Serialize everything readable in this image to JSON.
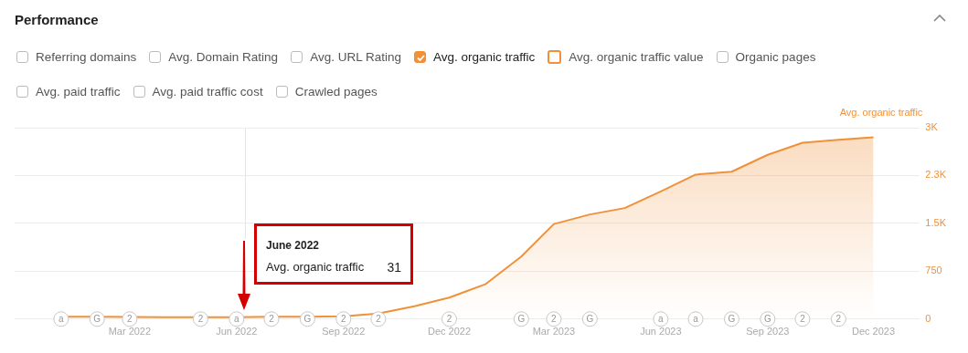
{
  "chart_data": {
    "type": "area",
    "title": "Performance",
    "ylabel": "Avg. organic traffic",
    "x": [
      "2022-01",
      "2022-02",
      "2022-03",
      "2022-04",
      "2022-05",
      "2022-06",
      "2022-07",
      "2022-08",
      "2022-09",
      "2022-10",
      "2022-11",
      "2022-12",
      "2023-01",
      "2023-02",
      "2023-03",
      "2023-04",
      "2023-05",
      "2023-06",
      "2023-07",
      "2023-08",
      "2023-09",
      "2023-10",
      "2023-11",
      "2023-12"
    ],
    "series": [
      {
        "color": "#f0913a",
        "values": [
          35,
          35,
          33,
          30,
          28,
          31,
          35,
          38,
          42,
          88,
          200,
          336,
          545,
          980,
          1490,
          1640,
          1740,
          2000,
          2265,
          2310,
          2575,
          2765,
          2810,
          2850
        ]
      },
      {
        "type": "scatter",
        "marker": "circle",
        "color": "#c8c8c8",
        "x": [
          "2022-01",
          "2022-02",
          "2022-03",
          "2022-05",
          "2022-06",
          "2022-07",
          "2022-08",
          "2022-09",
          "2022-10",
          "2022-12",
          "2023-02",
          "2023-03",
          "2023-04",
          "2023-06",
          "2023-07",
          "2023-08",
          "2023-09",
          "2023-10",
          "2023-11"
        ],
        "values": [
          0,
          0,
          0,
          0,
          0,
          0,
          0,
          0,
          0,
          0,
          0,
          0,
          0,
          0,
          0,
          0,
          0,
          0,
          0
        ]
      }
    ],
    "xlim": [
      "2021-11-22",
      "2024-01-10"
    ],
    "xticks": [
      {
        "value": "2022-03",
        "label": "Mar 2022"
      },
      {
        "value": "2022-06",
        "label": "Jun 2022"
      },
      {
        "value": "2022-09",
        "label": "Sep 2022"
      },
      {
        "value": "2022-12",
        "label": "Dec 2022"
      },
      {
        "value": "2023-03",
        "label": "Mar 2023"
      },
      {
        "value": "2023-06",
        "label": "Jun 2023"
      },
      {
        "value": "2023-09",
        "label": "Sep 2023"
      },
      {
        "value": "2023-12",
        "label": "Dec 2023"
      }
    ],
    "ylim": [
      0,
      3000
    ],
    "yticks": [
      0,
      750,
      {
        "value": 1500,
        "label": "1.5K"
      },
      {
        "value": 2250,
        "label": "2.3K"
      },
      {
        "value": 3000,
        "label": "3K"
      }
    ],
    "grid": "y",
    "legend": false,
    "marker": "none",
    "line_style": "solid",
    "annotations": [
      "Referring domains",
      "Avg. Domain Rating",
      "Avg. URL Rating",
      "Avg. organic traffic",
      "Avg. organic traffic value",
      "Organic pages",
      "Avg. paid traffic",
      "Avg. paid traffic cost",
      "Crawled pages",
      "June 2022",
      "Avg. organic traffic",
      "31",
      {
        "text": "a",
        "x": "2022-01",
        "y": 0
      },
      {
        "text": "G",
        "x": "2022-02",
        "y": 0
      },
      {
        "text": "2",
        "x": "2022-03",
        "y": 0
      },
      {
        "text": "2",
        "x": "2022-05",
        "y": 0
      },
      {
        "text": "a",
        "x": "2022-06",
        "y": 0
      },
      {
        "text": "2",
        "x": "2022-07",
        "y": 0
      },
      {
        "text": "G",
        "x": "2022-08",
        "y": 0
      },
      {
        "text": "2",
        "x": "2022-09",
        "y": 0
      },
      {
        "text": "2",
        "x": "2022-10",
        "y": 0
      },
      {
        "text": "2",
        "x": "2022-12",
        "y": 0
      },
      {
        "text": "G",
        "x": "2023-02",
        "y": 0
      },
      {
        "text": "2",
        "x": "2023-03",
        "y": 0
      },
      {
        "text": "G",
        "x": "2023-04",
        "y": 0
      },
      {
        "text": "a",
        "x": "2023-06",
        "y": 0
      },
      {
        "text": "a",
        "x": "2023-07",
        "y": 0
      },
      {
        "text": "G",
        "x": "2023-08",
        "y": 0
      },
      {
        "text": "G",
        "x": "2023-09",
        "y": 0
      },
      {
        "text": "2",
        "x": "2023-10",
        "y": 0
      },
      {
        "text": "2",
        "x": "2023-11",
        "y": 0
      }
    ]
  }
}
